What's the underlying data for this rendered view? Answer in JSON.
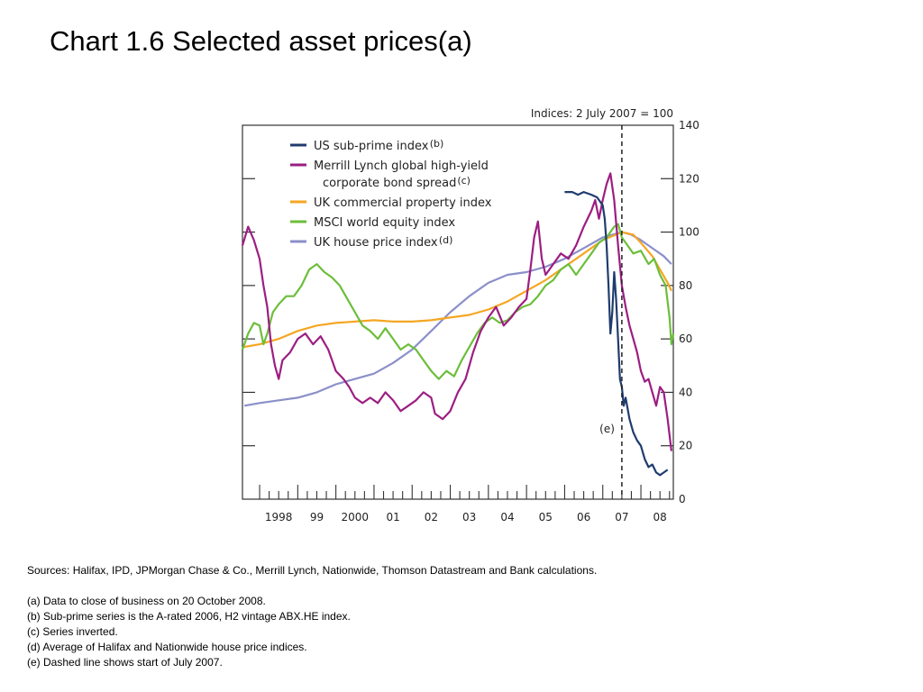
{
  "slide": {
    "title": "Chart 1.6  Selected asset prices(a)"
  },
  "chart_data": {
    "type": "line",
    "index_note": "Indices:  2 July 2007 = 100",
    "ylim": [
      0,
      140
    ],
    "y_ticks": [
      "140",
      "120",
      "100",
      "80",
      "60",
      "40",
      "20",
      "0"
    ],
    "x_tick_labels": [
      "1998",
      "99",
      "2000",
      "01",
      "02",
      "03",
      "04",
      "05",
      "06",
      "07",
      "08"
    ],
    "xlim": [
      1997.55,
      2008.85
    ],
    "vline": {
      "x": 2007.5,
      "label": "(e)"
    },
    "series": [
      {
        "name": "US sub-prime index",
        "note": "(b)",
        "color": "#1f3c6e",
        "points": [
          [
            2006.0,
            115
          ],
          [
            2006.2,
            115
          ],
          [
            2006.35,
            114
          ],
          [
            2006.5,
            115
          ],
          [
            2006.7,
            114
          ],
          [
            2006.85,
            113
          ],
          [
            2007.0,
            110
          ],
          [
            2007.05,
            105
          ],
          [
            2007.1,
            95
          ],
          [
            2007.15,
            80
          ],
          [
            2007.2,
            62
          ],
          [
            2007.25,
            70
          ],
          [
            2007.3,
            85
          ],
          [
            2007.35,
            75
          ],
          [
            2007.4,
            60
          ],
          [
            2007.45,
            45
          ],
          [
            2007.5,
            42
          ],
          [
            2007.55,
            35
          ],
          [
            2007.6,
            38
          ],
          [
            2007.7,
            30
          ],
          [
            2007.8,
            25
          ],
          [
            2007.9,
            22
          ],
          [
            2008.0,
            20
          ],
          [
            2008.1,
            15
          ],
          [
            2008.2,
            12
          ],
          [
            2008.3,
            13
          ],
          [
            2008.4,
            10
          ],
          [
            2008.5,
            9
          ],
          [
            2008.6,
            10
          ],
          [
            2008.7,
            11
          ]
        ]
      },
      {
        "name": "Merrill Lynch global high-yield corporate bond spread",
        "note": "(c)",
        "color": "#9c1e82",
        "points": [
          [
            1997.55,
            95
          ],
          [
            1997.7,
            102
          ],
          [
            1997.85,
            97
          ],
          [
            1998.0,
            90
          ],
          [
            1998.1,
            80
          ],
          [
            1998.2,
            72
          ],
          [
            1998.3,
            58
          ],
          [
            1998.4,
            50
          ],
          [
            1998.5,
            45
          ],
          [
            1998.6,
            52
          ],
          [
            1998.8,
            55
          ],
          [
            1999.0,
            60
          ],
          [
            1999.2,
            62
          ],
          [
            1999.4,
            58
          ],
          [
            1999.6,
            61
          ],
          [
            1999.8,
            56
          ],
          [
            2000.0,
            48
          ],
          [
            2000.2,
            45
          ],
          [
            2000.35,
            42
          ],
          [
            2000.5,
            38
          ],
          [
            2000.7,
            36
          ],
          [
            2000.9,
            38
          ],
          [
            2001.1,
            36
          ],
          [
            2001.3,
            40
          ],
          [
            2001.5,
            37
          ],
          [
            2001.7,
            33
          ],
          [
            2001.9,
            35
          ],
          [
            2002.1,
            37
          ],
          [
            2002.3,
            40
          ],
          [
            2002.5,
            38
          ],
          [
            2002.6,
            32
          ],
          [
            2002.8,
            30
          ],
          [
            2003.0,
            33
          ],
          [
            2003.2,
            40
          ],
          [
            2003.4,
            45
          ],
          [
            2003.6,
            55
          ],
          [
            2003.8,
            63
          ],
          [
            2004.0,
            68
          ],
          [
            2004.2,
            72
          ],
          [
            2004.4,
            65
          ],
          [
            2004.6,
            68
          ],
          [
            2004.8,
            72
          ],
          [
            2005.0,
            75
          ],
          [
            2005.1,
            86
          ],
          [
            2005.2,
            98
          ],
          [
            2005.3,
            104
          ],
          [
            2005.4,
            90
          ],
          [
            2005.5,
            84
          ],
          [
            2005.7,
            88
          ],
          [
            2005.9,
            92
          ],
          [
            2006.1,
            90
          ],
          [
            2006.3,
            95
          ],
          [
            2006.5,
            102
          ],
          [
            2006.7,
            108
          ],
          [
            2006.8,
            112
          ],
          [
            2006.9,
            105
          ],
          [
            2007.0,
            112
          ],
          [
            2007.1,
            118
          ],
          [
            2007.2,
            122
          ],
          [
            2007.3,
            112
          ],
          [
            2007.4,
            95
          ],
          [
            2007.5,
            80
          ],
          [
            2007.6,
            72
          ],
          [
            2007.7,
            65
          ],
          [
            2007.8,
            60
          ],
          [
            2007.9,
            55
          ],
          [
            2008.0,
            48
          ],
          [
            2008.1,
            44
          ],
          [
            2008.2,
            45
          ],
          [
            2008.3,
            40
          ],
          [
            2008.4,
            35
          ],
          [
            2008.5,
            42
          ],
          [
            2008.6,
            40
          ],
          [
            2008.7,
            30
          ],
          [
            2008.8,
            18
          ]
        ]
      },
      {
        "name": "UK commercial property index",
        "color": "#f5a623",
        "points": [
          [
            1997.6,
            57
          ],
          [
            1998.0,
            58
          ],
          [
            1998.5,
            60
          ],
          [
            1999.0,
            63
          ],
          [
            1999.5,
            65
          ],
          [
            2000.0,
            66
          ],
          [
            2000.5,
            66.5
          ],
          [
            2001.0,
            67
          ],
          [
            2001.5,
            66.5
          ],
          [
            2002.0,
            66.5
          ],
          [
            2002.5,
            67
          ],
          [
            2003.0,
            68
          ],
          [
            2003.5,
            69
          ],
          [
            2004.0,
            71
          ],
          [
            2004.5,
            74
          ],
          [
            2005.0,
            78
          ],
          [
            2005.5,
            82
          ],
          [
            2006.0,
            87
          ],
          [
            2006.5,
            92
          ],
          [
            2007.0,
            97
          ],
          [
            2007.5,
            100
          ],
          [
            2007.8,
            99
          ],
          [
            2008.0,
            96
          ],
          [
            2008.3,
            91
          ],
          [
            2008.5,
            86
          ],
          [
            2008.7,
            81
          ],
          [
            2008.8,
            78
          ]
        ]
      },
      {
        "name": "MSCI world equity index",
        "color": "#6cbe3a",
        "points": [
          [
            1997.55,
            56
          ],
          [
            1997.7,
            62
          ],
          [
            1997.85,
            66
          ],
          [
            1998.0,
            65
          ],
          [
            1998.1,
            58
          ],
          [
            1998.2,
            62
          ],
          [
            1998.35,
            70
          ],
          [
            1998.5,
            73
          ],
          [
            1998.7,
            76
          ],
          [
            1998.9,
            76
          ],
          [
            1999.1,
            80
          ],
          [
            1999.3,
            86
          ],
          [
            1999.5,
            88
          ],
          [
            1999.7,
            85
          ],
          [
            1999.9,
            83
          ],
          [
            2000.1,
            80
          ],
          [
            2000.3,
            75
          ],
          [
            2000.5,
            70
          ],
          [
            2000.7,
            65
          ],
          [
            2000.9,
            63
          ],
          [
            2001.1,
            60
          ],
          [
            2001.3,
            64
          ],
          [
            2001.5,
            60
          ],
          [
            2001.7,
            56
          ],
          [
            2001.9,
            58
          ],
          [
            2002.1,
            56
          ],
          [
            2002.3,
            52
          ],
          [
            2002.5,
            48
          ],
          [
            2002.7,
            45
          ],
          [
            2002.9,
            48
          ],
          [
            2003.1,
            46
          ],
          [
            2003.3,
            52
          ],
          [
            2003.5,
            57
          ],
          [
            2003.7,
            62
          ],
          [
            2003.9,
            66
          ],
          [
            2004.1,
            68
          ],
          [
            2004.3,
            66
          ],
          [
            2004.5,
            67
          ],
          [
            2004.7,
            70
          ],
          [
            2004.9,
            72
          ],
          [
            2005.1,
            73
          ],
          [
            2005.3,
            76
          ],
          [
            2005.5,
            80
          ],
          [
            2005.7,
            82
          ],
          [
            2005.9,
            86
          ],
          [
            2006.1,
            88
          ],
          [
            2006.3,
            84
          ],
          [
            2006.5,
            88
          ],
          [
            2006.7,
            92
          ],
          [
            2006.9,
            96
          ],
          [
            2007.1,
            98
          ],
          [
            2007.3,
            102
          ],
          [
            2007.4,
            103
          ],
          [
            2007.5,
            98
          ],
          [
            2007.6,
            96
          ],
          [
            2007.8,
            92
          ],
          [
            2008.0,
            93
          ],
          [
            2008.2,
            88
          ],
          [
            2008.35,
            90
          ],
          [
            2008.5,
            84
          ],
          [
            2008.65,
            80
          ],
          [
            2008.75,
            68
          ],
          [
            2008.8,
            58
          ],
          [
            2008.85,
            62
          ]
        ]
      },
      {
        "name": "UK house price index",
        "note": "(d)",
        "color": "#8b8fc9",
        "points": [
          [
            1997.6,
            35
          ],
          [
            1998.0,
            36
          ],
          [
            1998.5,
            37
          ],
          [
            1999.0,
            38
          ],
          [
            1999.5,
            40
          ],
          [
            2000.0,
            43
          ],
          [
            2000.5,
            45
          ],
          [
            2001.0,
            47
          ],
          [
            2001.5,
            51
          ],
          [
            2002.0,
            56
          ],
          [
            2002.5,
            63
          ],
          [
            2003.0,
            70
          ],
          [
            2003.5,
            76
          ],
          [
            2004.0,
            81
          ],
          [
            2004.5,
            84
          ],
          [
            2005.0,
            85
          ],
          [
            2005.5,
            87
          ],
          [
            2006.0,
            90
          ],
          [
            2006.5,
            94
          ],
          [
            2007.0,
            98
          ],
          [
            2007.5,
            100
          ],
          [
            2007.75,
            99
          ],
          [
            2008.0,
            97
          ],
          [
            2008.3,
            94
          ],
          [
            2008.6,
            91
          ],
          [
            2008.8,
            88
          ]
        ]
      }
    ]
  },
  "notes": {
    "sources": "Sources:  Halifax, IPD, JPMorgan Chase & Co., Merrill Lynch, Nationwide, Thomson Datastream and Bank calculations.",
    "a": "(a)  Data to close of business on 20 October 2008.",
    "b": "(b)  Sub-prime series is the A-rated 2006, H2 vintage ABX.HE index.",
    "c": "(c)  Series inverted.",
    "d": "(d)  Average of Halifax and Nationwide house price indices.",
    "e": "(e) Dashed line shows start of July 2007."
  }
}
